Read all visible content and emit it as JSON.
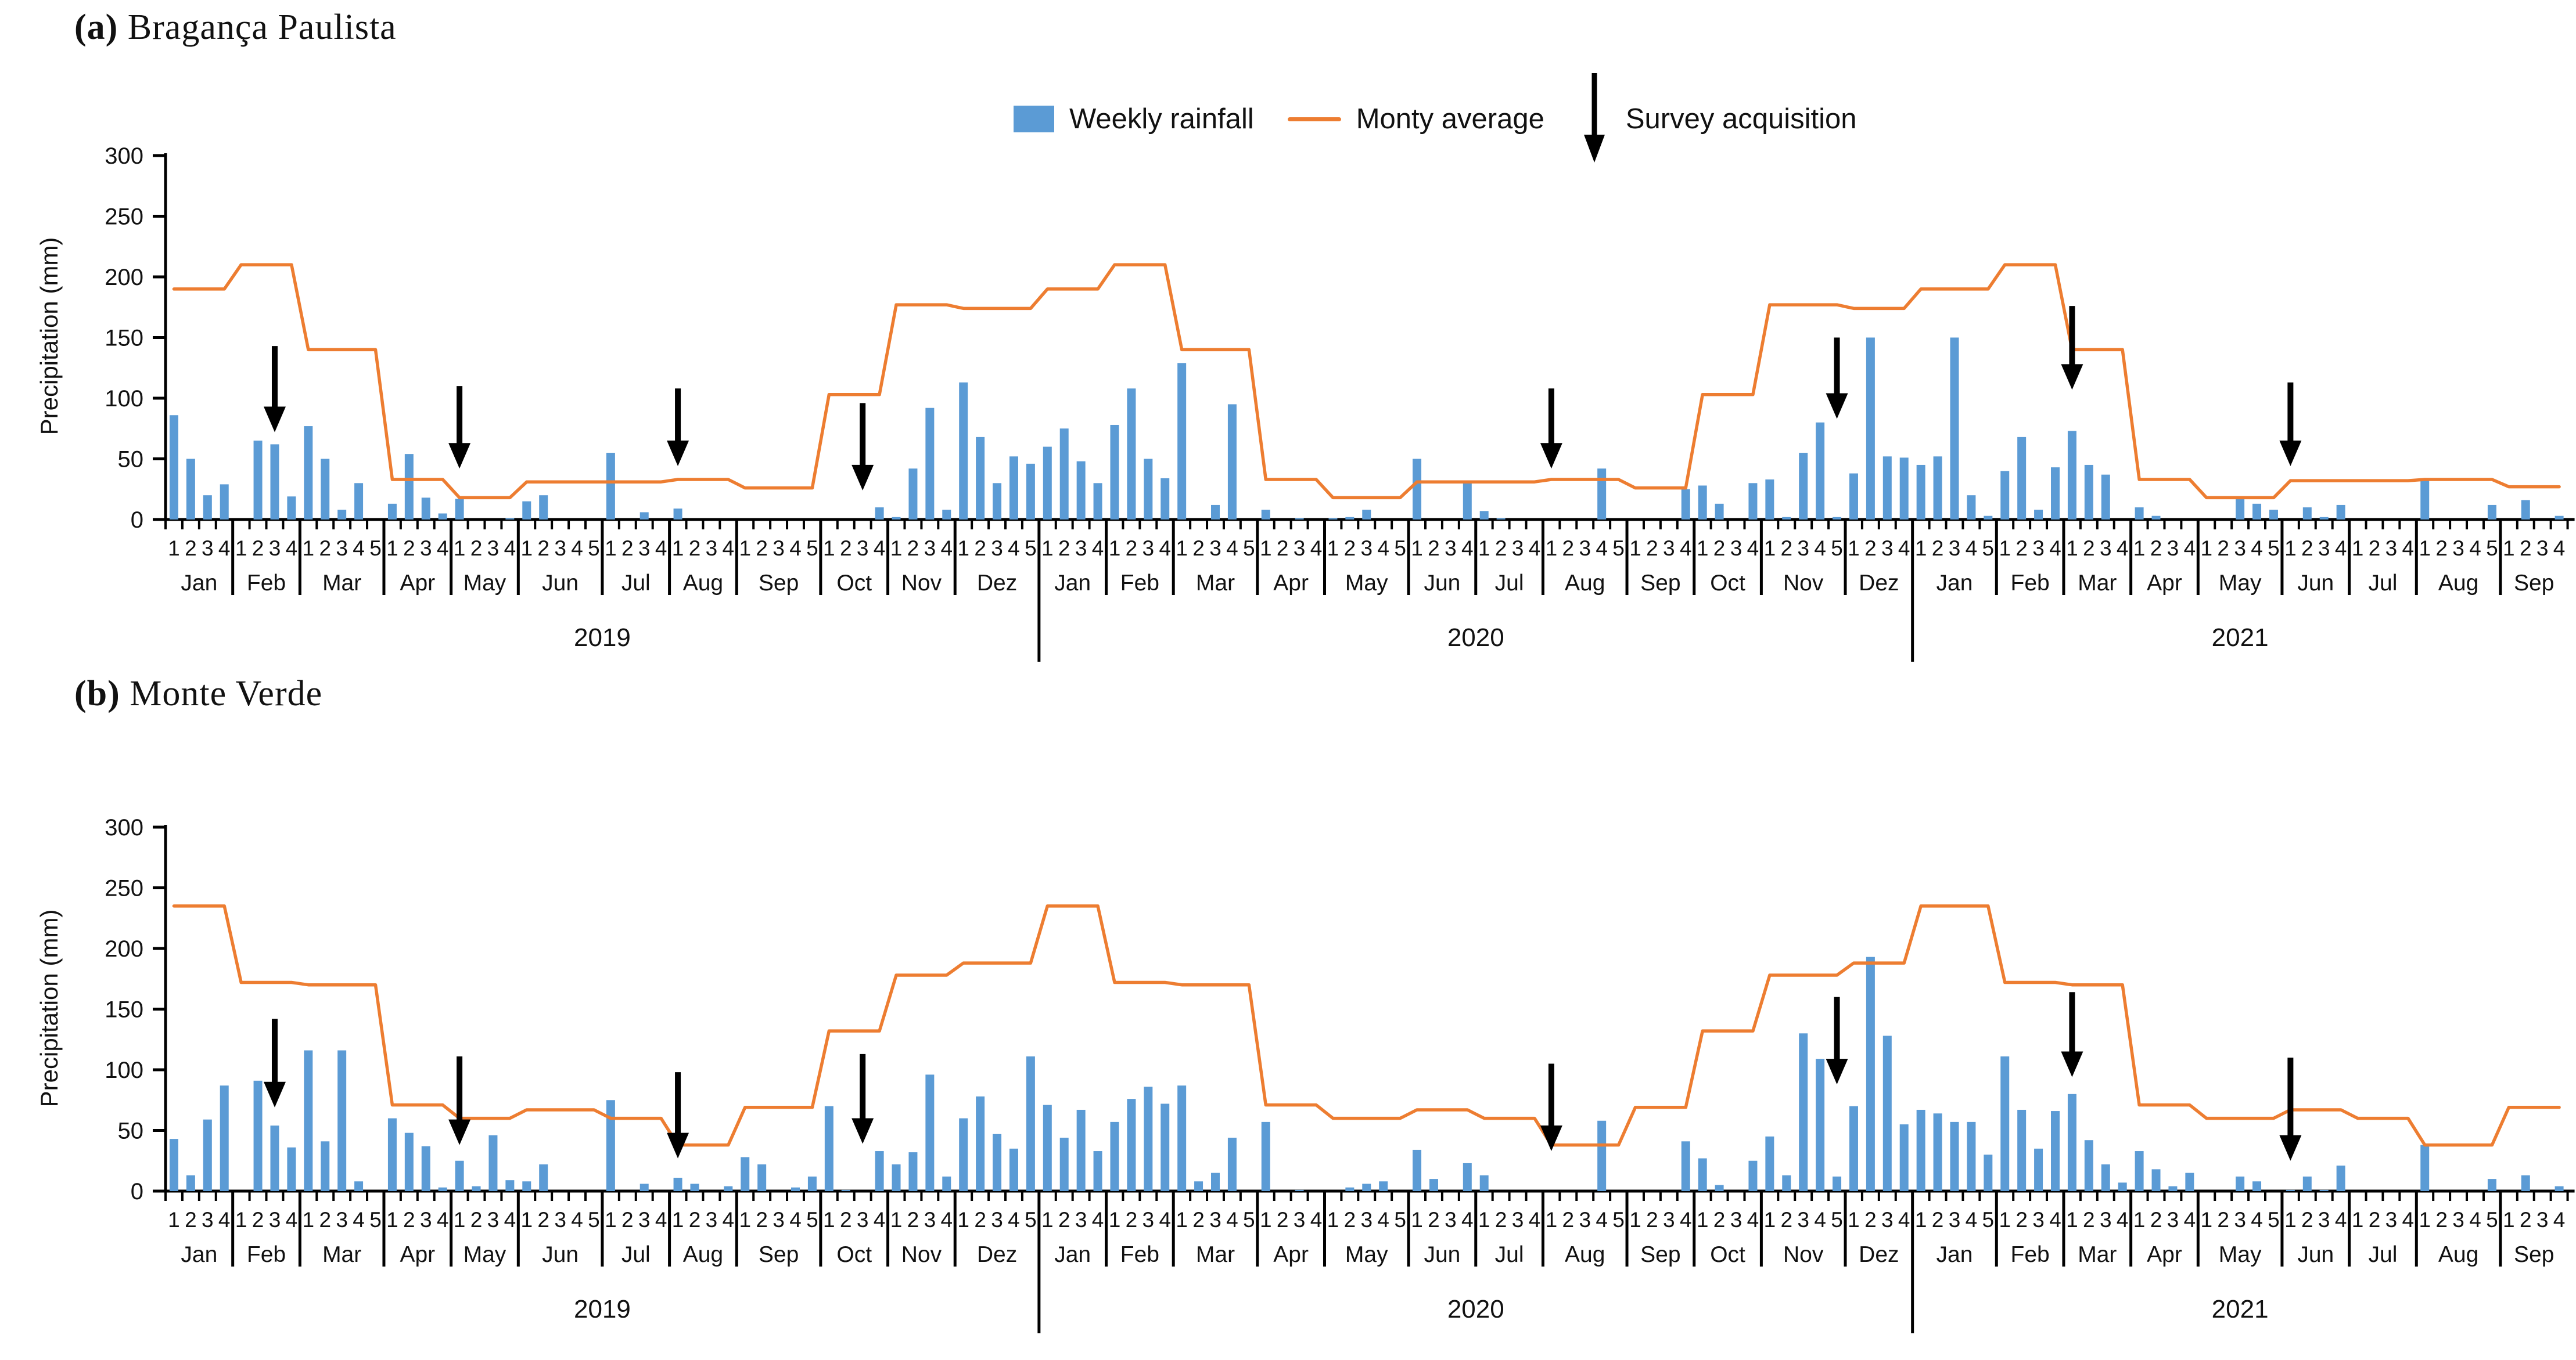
{
  "legend": {
    "weekly_rainfall": "Weekly rainfall",
    "monthly_average": "Monty average",
    "survey_acquisition": "Survey acquisition"
  },
  "colors": {
    "bar": "#5B9BD5",
    "average_line": "#ED7D31",
    "arrow": "#000000",
    "axis": "#000000"
  },
  "chart_data": [
    {
      "type": "bar",
      "title_prefix": "(a)",
      "title_name": "Bragança Paulista",
      "ylabel": "Precipitation (mm)",
      "ylim": [
        0,
        300
      ],
      "yticks": [
        0,
        50,
        100,
        150,
        200,
        250,
        300
      ],
      "series": [
        {
          "name": "Weekly rainfall",
          "kind": "bar",
          "color": "#5B9BD5"
        },
        {
          "name": "Monty average",
          "kind": "line",
          "color": "#ED7D31"
        }
      ],
      "months": [
        {
          "year": 2019,
          "month": "Jan",
          "weeks": 4,
          "weekly_rainfall": [
            86,
            50,
            20,
            29
          ],
          "monthly_average": 190
        },
        {
          "year": 2019,
          "month": "Feb",
          "weeks": 4,
          "weekly_rainfall": [
            0,
            65,
            62,
            19
          ],
          "monthly_average": 210
        },
        {
          "year": 2019,
          "month": "Mar",
          "weeks": 5,
          "weekly_rainfall": [
            77,
            50,
            8,
            30,
            0
          ],
          "monthly_average": 140
        },
        {
          "year": 2019,
          "month": "Apr",
          "weeks": 4,
          "weekly_rainfall": [
            13,
            54,
            18,
            5
          ],
          "monthly_average": 33
        },
        {
          "year": 2019,
          "month": "May",
          "weeks": 4,
          "weekly_rainfall": [
            17,
            0,
            0,
            1
          ],
          "monthly_average": 18
        },
        {
          "year": 2019,
          "month": "Jun",
          "weeks": 5,
          "weekly_rainfall": [
            15,
            20,
            0,
            0,
            0
          ],
          "monthly_average": 31
        },
        {
          "year": 2019,
          "month": "Jul",
          "weeks": 4,
          "weekly_rainfall": [
            55,
            0,
            6,
            0
          ],
          "monthly_average": 31
        },
        {
          "year": 2019,
          "month": "Aug",
          "weeks": 4,
          "weekly_rainfall": [
            9,
            0,
            0,
            0
          ],
          "monthly_average": 33
        },
        {
          "year": 2019,
          "month": "Sep",
          "weeks": 5,
          "weekly_rainfall": [
            0,
            0,
            0,
            0,
            0
          ],
          "monthly_average": 26
        },
        {
          "year": 2019,
          "month": "Oct",
          "weeks": 4,
          "weekly_rainfall": [
            0,
            0,
            0,
            10
          ],
          "monthly_average": 103
        },
        {
          "year": 2019,
          "month": "Nov",
          "weeks": 4,
          "weekly_rainfall": [
            2,
            42,
            92,
            8
          ],
          "monthly_average": 177
        },
        {
          "year": 2019,
          "month": "Dez",
          "weeks": 5,
          "weekly_rainfall": [
            113,
            68,
            30,
            52,
            46
          ],
          "monthly_average": 174
        },
        {
          "year": 2020,
          "month": "Jan",
          "weeks": 4,
          "weekly_rainfall": [
            60,
            75,
            48,
            30
          ],
          "monthly_average": 190
        },
        {
          "year": 2020,
          "month": "Feb",
          "weeks": 4,
          "weekly_rainfall": [
            78,
            108,
            50,
            34
          ],
          "monthly_average": 210
        },
        {
          "year": 2020,
          "month": "Mar",
          "weeks": 5,
          "weekly_rainfall": [
            129,
            0,
            12,
            95,
            0
          ],
          "monthly_average": 140
        },
        {
          "year": 2020,
          "month": "Apr",
          "weeks": 4,
          "weekly_rainfall": [
            8,
            0,
            1,
            0
          ],
          "monthly_average": 33
        },
        {
          "year": 2020,
          "month": "May",
          "weeks": 5,
          "weekly_rainfall": [
            1,
            2,
            8,
            0,
            0
          ],
          "monthly_average": 18
        },
        {
          "year": 2020,
          "month": "Jun",
          "weeks": 4,
          "weekly_rainfall": [
            50,
            0,
            0,
            30
          ],
          "monthly_average": 31
        },
        {
          "year": 2020,
          "month": "Jul",
          "weeks": 4,
          "weekly_rainfall": [
            7,
            1,
            0,
            0
          ],
          "monthly_average": 31
        },
        {
          "year": 2020,
          "month": "Aug",
          "weeks": 5,
          "weekly_rainfall": [
            0,
            0,
            0,
            42,
            0
          ],
          "monthly_average": 33
        },
        {
          "year": 2020,
          "month": "Sep",
          "weeks": 4,
          "weekly_rainfall": [
            0,
            0,
            0,
            25
          ],
          "monthly_average": 26
        },
        {
          "year": 2020,
          "month": "Oct",
          "weeks": 4,
          "weekly_rainfall": [
            28,
            13,
            0,
            30
          ],
          "monthly_average": 103
        },
        {
          "year": 2020,
          "month": "Nov",
          "weeks": 5,
          "weekly_rainfall": [
            33,
            2,
            55,
            80,
            2
          ],
          "monthly_average": 177
        },
        {
          "year": 2020,
          "month": "Dez",
          "weeks": 4,
          "weekly_rainfall": [
            38,
            150,
            52,
            51
          ],
          "monthly_average": 174
        },
        {
          "year": 2021,
          "month": "Jan",
          "weeks": 5,
          "weekly_rainfall": [
            45,
            52,
            150,
            20,
            3
          ],
          "monthly_average": 190
        },
        {
          "year": 2021,
          "month": "Feb",
          "weeks": 4,
          "weekly_rainfall": [
            40,
            68,
            8,
            43
          ],
          "monthly_average": 210
        },
        {
          "year": 2021,
          "month": "Mar",
          "weeks": 4,
          "weekly_rainfall": [
            73,
            45,
            37,
            0
          ],
          "monthly_average": 140
        },
        {
          "year": 2021,
          "month": "Apr",
          "weeks": 4,
          "weekly_rainfall": [
            10,
            3,
            0,
            0
          ],
          "monthly_average": 33
        },
        {
          "year": 2021,
          "month": "May",
          "weeks": 5,
          "weekly_rainfall": [
            0,
            0,
            19,
            13,
            8
          ],
          "monthly_average": 18
        },
        {
          "year": 2021,
          "month": "Jun",
          "weeks": 4,
          "weekly_rainfall": [
            0,
            10,
            2,
            12
          ],
          "monthly_average": 32
        },
        {
          "year": 2021,
          "month": "Jul",
          "weeks": 4,
          "weekly_rainfall": [
            0,
            0,
            0,
            0
          ],
          "monthly_average": 32
        },
        {
          "year": 2021,
          "month": "Aug",
          "weeks": 5,
          "weekly_rainfall": [
            33,
            0,
            0,
            0,
            12
          ],
          "monthly_average": 33
        },
        {
          "year": 2021,
          "month": "Sep",
          "weeks": 4,
          "weekly_rainfall": [
            0,
            16,
            0,
            3
          ],
          "monthly_average": 27
        }
      ],
      "survey_acquisitions": [
        {
          "label": "Feb 2019 week 3",
          "month_index": 1,
          "week": 3,
          "tip_mm": 72,
          "tail_mm": 143
        },
        {
          "label": "May 2019 week 1",
          "month_index": 4,
          "week": 1,
          "tip_mm": 42,
          "tail_mm": 110
        },
        {
          "label": "Aug 2019 week 1",
          "month_index": 7,
          "week": 1,
          "tip_mm": 44,
          "tail_mm": 108
        },
        {
          "label": "Oct 2019 week 3",
          "month_index": 9,
          "week": 3,
          "tip_mm": 24,
          "tail_mm": 96
        },
        {
          "label": "Aug 2020 week 1",
          "month_index": 19,
          "week": 1,
          "tip_mm": 42,
          "tail_mm": 108
        },
        {
          "label": "Nov 2020 week 5",
          "month_index": 22,
          "week": 5,
          "tip_mm": 83,
          "tail_mm": 150
        },
        {
          "label": "Mar 2021 week 1",
          "month_index": 26,
          "week": 1,
          "tip_mm": 107,
          "tail_mm": 176
        },
        {
          "label": "Jun 2021 week 1",
          "month_index": 29,
          "week": 1,
          "tip_mm": 44,
          "tail_mm": 113
        }
      ]
    },
    {
      "type": "bar",
      "title_prefix": "(b)",
      "title_name": "Monte Verde",
      "ylabel": "Precipitation (mm)",
      "ylim": [
        0,
        300
      ],
      "yticks": [
        0,
        50,
        100,
        150,
        200,
        250,
        300
      ],
      "series": [
        {
          "name": "Weekly rainfall",
          "kind": "bar",
          "color": "#5B9BD5"
        },
        {
          "name": "Monty average",
          "kind": "line",
          "color": "#ED7D31"
        }
      ],
      "months": [
        {
          "year": 2019,
          "month": "Jan",
          "weeks": 4,
          "weekly_rainfall": [
            43,
            13,
            59,
            87
          ],
          "monthly_average": 235
        },
        {
          "year": 2019,
          "month": "Feb",
          "weeks": 4,
          "weekly_rainfall": [
            0,
            91,
            54,
            36
          ],
          "monthly_average": 172
        },
        {
          "year": 2019,
          "month": "Mar",
          "weeks": 5,
          "weekly_rainfall": [
            116,
            41,
            116,
            8,
            0
          ],
          "monthly_average": 170
        },
        {
          "year": 2019,
          "month": "Apr",
          "weeks": 4,
          "weekly_rainfall": [
            60,
            48,
            37,
            3
          ],
          "monthly_average": 71
        },
        {
          "year": 2019,
          "month": "May",
          "weeks": 4,
          "weekly_rainfall": [
            25,
            4,
            46,
            9
          ],
          "monthly_average": 60
        },
        {
          "year": 2019,
          "month": "Jun",
          "weeks": 5,
          "weekly_rainfall": [
            8,
            22,
            0,
            0,
            0
          ],
          "monthly_average": 67
        },
        {
          "year": 2019,
          "month": "Jul",
          "weeks": 4,
          "weekly_rainfall": [
            75,
            0,
            6,
            0
          ],
          "monthly_average": 60
        },
        {
          "year": 2019,
          "month": "Aug",
          "weeks": 4,
          "weekly_rainfall": [
            11,
            6,
            0,
            4
          ],
          "monthly_average": 38
        },
        {
          "year": 2019,
          "month": "Sep",
          "weeks": 5,
          "weekly_rainfall": [
            28,
            22,
            0,
            3,
            12
          ],
          "monthly_average": 69
        },
        {
          "year": 2019,
          "month": "Oct",
          "weeks": 4,
          "weekly_rainfall": [
            70,
            1,
            0,
            33
          ],
          "monthly_average": 132
        },
        {
          "year": 2019,
          "month": "Nov",
          "weeks": 4,
          "weekly_rainfall": [
            22,
            32,
            96,
            12
          ],
          "monthly_average": 178
        },
        {
          "year": 2019,
          "month": "Dez",
          "weeks": 5,
          "weekly_rainfall": [
            60,
            78,
            47,
            35,
            111
          ],
          "monthly_average": 188
        },
        {
          "year": 2020,
          "month": "Jan",
          "weeks": 4,
          "weekly_rainfall": [
            71,
            44,
            67,
            33
          ],
          "monthly_average": 235
        },
        {
          "year": 2020,
          "month": "Feb",
          "weeks": 4,
          "weekly_rainfall": [
            57,
            76,
            86,
            72
          ],
          "monthly_average": 172
        },
        {
          "year": 2020,
          "month": "Mar",
          "weeks": 5,
          "weekly_rainfall": [
            87,
            8,
            15,
            44,
            0
          ],
          "monthly_average": 170
        },
        {
          "year": 2020,
          "month": "Apr",
          "weeks": 4,
          "weekly_rainfall": [
            57,
            0,
            1,
            0
          ],
          "monthly_average": 71
        },
        {
          "year": 2020,
          "month": "May",
          "weeks": 5,
          "weekly_rainfall": [
            0,
            3,
            6,
            8,
            0
          ],
          "monthly_average": 60
        },
        {
          "year": 2020,
          "month": "Jun",
          "weeks": 4,
          "weekly_rainfall": [
            34,
            10,
            0,
            23
          ],
          "monthly_average": 67
        },
        {
          "year": 2020,
          "month": "Jul",
          "weeks": 4,
          "weekly_rainfall": [
            13,
            0,
            0,
            0
          ],
          "monthly_average": 60
        },
        {
          "year": 2020,
          "month": "Aug",
          "weeks": 5,
          "weekly_rainfall": [
            0,
            0,
            0,
            58,
            0
          ],
          "monthly_average": 38
        },
        {
          "year": 2020,
          "month": "Sep",
          "weeks": 4,
          "weekly_rainfall": [
            0,
            0,
            0,
            41
          ],
          "monthly_average": 69
        },
        {
          "year": 2020,
          "month": "Oct",
          "weeks": 4,
          "weekly_rainfall": [
            27,
            5,
            0,
            25
          ],
          "monthly_average": 132
        },
        {
          "year": 2020,
          "month": "Nov",
          "weeks": 5,
          "weekly_rainfall": [
            45,
            13,
            130,
            109,
            12
          ],
          "monthly_average": 178
        },
        {
          "year": 2020,
          "month": "Dez",
          "weeks": 4,
          "weekly_rainfall": [
            70,
            193,
            128,
            55
          ],
          "monthly_average": 188
        },
        {
          "year": 2021,
          "month": "Jan",
          "weeks": 5,
          "weekly_rainfall": [
            67,
            64,
            57,
            57,
            30
          ],
          "monthly_average": 235
        },
        {
          "year": 2021,
          "month": "Feb",
          "weeks": 4,
          "weekly_rainfall": [
            111,
            67,
            35,
            66
          ],
          "monthly_average": 172
        },
        {
          "year": 2021,
          "month": "Mar",
          "weeks": 4,
          "weekly_rainfall": [
            80,
            42,
            22,
            7
          ],
          "monthly_average": 170
        },
        {
          "year": 2021,
          "month": "Apr",
          "weeks": 4,
          "weekly_rainfall": [
            33,
            18,
            4,
            15
          ],
          "monthly_average": 71
        },
        {
          "year": 2021,
          "month": "May",
          "weeks": 5,
          "weekly_rainfall": [
            0,
            0,
            12,
            8,
            0
          ],
          "monthly_average": 60
        },
        {
          "year": 2021,
          "month": "Jun",
          "weeks": 4,
          "weekly_rainfall": [
            1,
            12,
            1,
            21
          ],
          "monthly_average": 67
        },
        {
          "year": 2021,
          "month": "Jul",
          "weeks": 4,
          "weekly_rainfall": [
            0,
            0,
            0,
            0
          ],
          "monthly_average": 60
        },
        {
          "year": 2021,
          "month": "Aug",
          "weeks": 5,
          "weekly_rainfall": [
            38,
            0,
            0,
            0,
            10
          ],
          "monthly_average": 38
        },
        {
          "year": 2021,
          "month": "Sep",
          "weeks": 4,
          "weekly_rainfall": [
            0,
            13,
            0,
            4
          ],
          "monthly_average": 69
        }
      ],
      "survey_acquisitions": [
        {
          "label": "Feb 2019 week 3",
          "month_index": 1,
          "week": 3,
          "tip_mm": 69,
          "tail_mm": 142
        },
        {
          "label": "May 2019 week 1",
          "month_index": 4,
          "week": 1,
          "tip_mm": 38,
          "tail_mm": 111
        },
        {
          "label": "Aug 2019 week 1",
          "month_index": 7,
          "week": 1,
          "tip_mm": 27,
          "tail_mm": 98
        },
        {
          "label": "Oct 2019 week 3",
          "month_index": 9,
          "week": 3,
          "tip_mm": 39,
          "tail_mm": 113
        },
        {
          "label": "Aug 2020 week 1",
          "month_index": 19,
          "week": 1,
          "tip_mm": 33,
          "tail_mm": 105
        },
        {
          "label": "Nov 2020 week 5",
          "month_index": 22,
          "week": 5,
          "tip_mm": 88,
          "tail_mm": 160
        },
        {
          "label": "Mar 2021 week 1",
          "month_index": 26,
          "week": 1,
          "tip_mm": 94,
          "tail_mm": 164
        },
        {
          "label": "Jun 2021 week 1",
          "month_index": 29,
          "week": 1,
          "tip_mm": 25,
          "tail_mm": 110
        }
      ]
    }
  ]
}
